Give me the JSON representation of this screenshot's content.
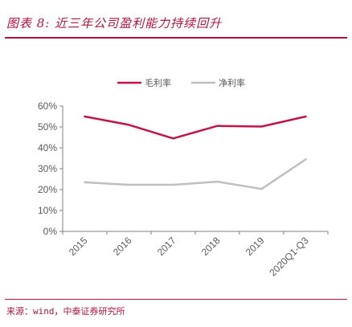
{
  "page": {
    "title": "图表 8:  近三年公司盈利能力持续回升",
    "source": "来源：wind，中泰证券研究所"
  },
  "colors": {
    "accent": "#b0123f",
    "gross_margin": "#c0154a",
    "net_margin": "#bfbfbf",
    "axis": "#7f7f7f",
    "text": "#595959"
  },
  "chart_data": {
    "type": "line",
    "categories": [
      "2015",
      "2016",
      "2017",
      "2018",
      "2019",
      "2020Q1-Q3"
    ],
    "series": [
      {
        "name": "毛利率",
        "values": [
          55.0,
          51.0,
          44.5,
          50.5,
          50.2,
          55.0
        ],
        "color": "#c0154a"
      },
      {
        "name": "净利率",
        "values": [
          23.5,
          22.3,
          22.3,
          23.8,
          20.3,
          34.5
        ],
        "color": "#bfbfbf"
      }
    ],
    "y_ticks": [
      "0%",
      "10%",
      "20%",
      "30%",
      "40%",
      "50%",
      "60%"
    ],
    "ylim": [
      0,
      60
    ],
    "grid": false,
    "legend_position": "top"
  }
}
